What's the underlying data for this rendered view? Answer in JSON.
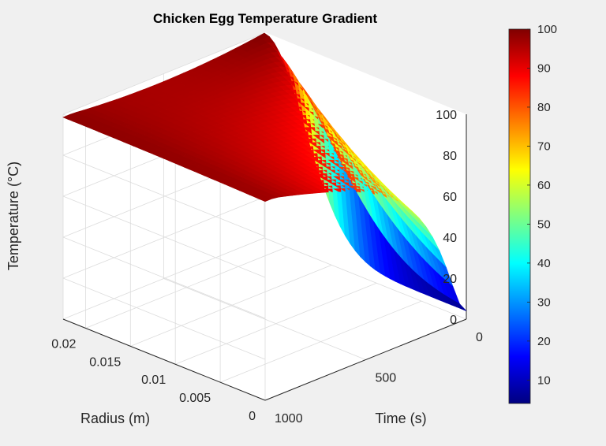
{
  "chart_data": {
    "type": "surface3d",
    "title": "Chicken Egg Temperature Gradient",
    "xlabel": "Radius (m)",
    "ylabel": "Time (s)",
    "zlabel": "Temperature (°C)",
    "xlim": [
      0,
      0.0225
    ],
    "ylim": [
      0,
      1000
    ],
    "zlim": [
      0,
      100
    ],
    "xticks": [
      "0",
      "0.005",
      "0.01",
      "0.015",
      "0.02"
    ],
    "yticks": [
      "0",
      "500",
      "1000"
    ],
    "zticks": [
      "0",
      "20",
      "40",
      "60",
      "80",
      "100"
    ],
    "colorbar": {
      "range": [
        4,
        100
      ],
      "ticks": [
        "10",
        "20",
        "30",
        "40",
        "50",
        "60",
        "70",
        "80",
        "90",
        "100"
      ],
      "colormap": "jet"
    },
    "boundary_temperature": 100,
    "initial_temperature": 4,
    "center_temperature_final": 90,
    "grid": true
  }
}
